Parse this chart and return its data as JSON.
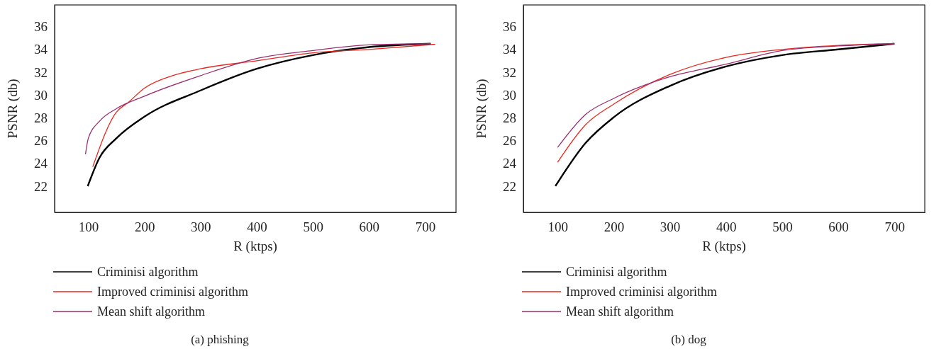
{
  "chart_data": [
    {
      "type": "line",
      "title": "(a) phishing",
      "xlabel": "R (ktps)",
      "ylabel": "PSNR (db)",
      "xlim": [
        40,
        755
      ],
      "xticks": [
        100,
        200,
        300,
        400,
        500,
        600,
        700
      ],
      "ylim": [
        19.7,
        37.9
      ],
      "yticks": [
        22,
        24,
        26,
        28,
        30,
        32,
        34,
        36
      ],
      "grid": false,
      "legend": "bottom",
      "series": [
        {
          "name": "Criminisi algorithm",
          "color": "#000000",
          "x": [
            99,
            120,
            150,
            200,
            300,
            400,
            500,
            600,
            710
          ],
          "values": [
            22,
            24.5,
            26.2,
            28.1,
            30.4,
            32.3,
            33.5,
            34.2,
            34.5
          ]
        },
        {
          "name": "Improved criminisi algorithm",
          "color": "#e8281e",
          "x": [
            108,
            150,
            170,
            200,
            250,
            300,
            400,
            500,
            600,
            718
          ],
          "values": [
            23.7,
            28.5,
            29.3,
            30.6,
            31.7,
            32.3,
            33,
            33.7,
            34,
            34.45
          ]
        },
        {
          "name": "Mean shift algorithm",
          "color": "#9b2d6e",
          "x": [
            95,
            100,
            120,
            150,
            200,
            300,
            400,
            500,
            600,
            710
          ],
          "values": [
            24.8,
            26.2,
            27.7,
            28.8,
            29.9,
            31.7,
            33.2,
            33.9,
            34.4,
            34.5
          ]
        }
      ]
    },
    {
      "type": "line",
      "title": "(b) dog",
      "xlabel": "R (ktps)",
      "ylabel": "PSNR (db)",
      "xlim": [
        39,
        754
      ],
      "xticks": [
        100,
        200,
        300,
        400,
        500,
        600,
        700
      ],
      "ylim": [
        19.7,
        37.9
      ],
      "yticks": [
        22,
        24,
        26,
        28,
        30,
        32,
        34,
        36
      ],
      "grid": false,
      "legend": "bottom",
      "series": [
        {
          "name": "Criminisi algorithm",
          "color": "#000000",
          "x": [
            96,
            150,
            200,
            300,
            400,
            500,
            600,
            700
          ],
          "values": [
            22,
            25.8,
            28.05,
            30.8,
            32.5,
            33.5,
            34,
            34.5
          ]
        },
        {
          "name": "Improved criminisi algorithm",
          "color": "#e8281e",
          "x": [
            100,
            150,
            200,
            300,
            400,
            500,
            600,
            700
          ],
          "values": [
            24.1,
            27.4,
            29.2,
            31.8,
            33.3,
            34,
            34.35,
            34.5
          ]
        },
        {
          "name": "Mean shift algorithm",
          "color": "#9b2d6e",
          "x": [
            100,
            150,
            200,
            300,
            400,
            500,
            600,
            700
          ],
          "values": [
            25.4,
            28.3,
            29.7,
            31.6,
            32.7,
            33.9,
            34.3,
            34.5
          ]
        }
      ]
    }
  ]
}
